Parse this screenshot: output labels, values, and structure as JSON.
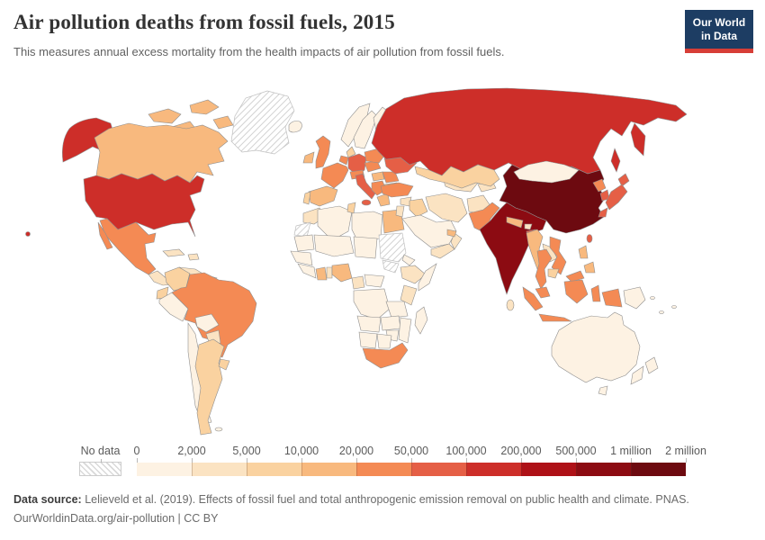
{
  "header": {
    "title": "Air pollution deaths from fossil fuels, 2015",
    "subtitle": "This measures annual excess mortality from the health impacts of air pollution from fossil fuels.",
    "logo": {
      "line1": "Our World",
      "line2": "in Data"
    }
  },
  "legend": {
    "no_data_label": "No data",
    "tick_labels": [
      "0",
      "2,000",
      "5,000",
      "10,000",
      "20,000",
      "50,000",
      "100,000",
      "200,000",
      "500,000",
      "1 million",
      "2 million"
    ]
  },
  "footer": {
    "source_label": "Data source:",
    "source_text": " Lelieveld et al. (2019). Effects of fossil fuel and total anthropogenic emission removal on public health and climate. PNAS.",
    "license_line": "OurWorldinData.org/air-pollution | CC BY"
  },
  "chart_data": {
    "type": "choropleth_map",
    "title": "Air pollution deaths from fossil fuels, 2015",
    "year": 2015,
    "unit": "annual excess deaths",
    "legend_position": "bottom",
    "no_data_regions": [
      "Greenland",
      "Western Sahara",
      "Sudan",
      "South Sudan"
    ],
    "bands": {
      "b1": {
        "range": "0 – 2,000",
        "color": "#fdf2e3"
      },
      "b2": {
        "range": "2,000 – 5,000",
        "color": "#fbe3c2"
      },
      "b3": {
        "range": "5,000 – 10,000",
        "color": "#fad2a0"
      },
      "b4": {
        "range": "10,000 – 20,000",
        "color": "#f8b97e"
      },
      "b5": {
        "range": "20,000 – 50,000",
        "color": "#f48a54"
      },
      "b6": {
        "range": "50,000 – 100,000",
        "color": "#e55f46"
      },
      "b7": {
        "range": "100,000 – 200,000",
        "color": "#cd2e29"
      },
      "b8": {
        "range": "200,000 – 500,000",
        "color": "#ae1117"
      },
      "b9": {
        "range": "500,000 – 1 million",
        "color": "#8c0b12"
      },
      "b10": {
        "range": "1 million – 2 million",
        "color": "#6d0a10"
      },
      "no_data": {
        "range": "No data",
        "color": "hatch"
      }
    },
    "countries": {
      "United States": "b7",
      "Canada": "b4",
      "Greenland": "no_data",
      "Iceland": "b1",
      "Mexico": "b5",
      "Cuba": "b2",
      "Haiti/Dominican Rep.": "b2",
      "Central America": "b2",
      "Colombia": "b3",
      "Venezuela": "b2",
      "Guyanas": "b1",
      "Ecuador": "b3",
      "Peru": "b1",
      "Brazil": "b5",
      "Bolivia": "b1",
      "Paraguay": "b2",
      "Uruguay": "b3",
      "Chile": "b1",
      "Argentina": "b3",
      "Falkland Is.": "b1",
      "United Kingdom": "b5",
      "Ireland": "b4",
      "Norway": "b1",
      "Sweden": "b1",
      "Finland": "b1",
      "Denmark": "b3",
      "Germany": "b6",
      "Benelux": "b5",
      "France": "b5",
      "Spain": "b4",
      "Portugal": "b3",
      "Italy": "b6",
      "Austria/Switzerland": "b5",
      "Czechia/Slovakia": "b5",
      "Poland": "b5",
      "Hungary": "b4",
      "Balkans": "b5",
      "Romania": "b5",
      "Bulgaria": "b4",
      "Greece": "b4",
      "Baltics": "b2",
      "Belarus": "b3",
      "Ukraine": "b6",
      "Russia": "b7",
      "Turkey": "b5",
      "Syria": "b2",
      "Iraq": "b3",
      "Jordan/Israel": "b2",
      "Saudi Arabia": "b1",
      "Yemen": "b2",
      "Oman": "b2",
      "United Arab Emirates": "b4",
      "Iran": "b2",
      "Afghanistan": "b2",
      "Turkmenistan/Uzbekistan": "b2",
      "Kyrgyzstan/Tajikistan": "b2",
      "Kazakhstan": "b3",
      "Pakistan": "b5",
      "India": "b9",
      "Nepal": "b4",
      "Bhutan": "b2",
      "Bangladesh": "b6",
      "Sri Lanka": "b2",
      "China": "b10",
      "Mongolia": "b1",
      "North Korea": "b5",
      "South Korea": "b6",
      "Japan": "b6",
      "Taiwan": "b6",
      "Myanmar": "b4",
      "Laos": "b2",
      "Vietnam": "b5",
      "Thailand": "b5",
      "Cambodia": "b3",
      "Malaysia": "b5",
      "Indonesia": "b5",
      "Philippines": "b4",
      "Papua New Guinea": "b1",
      "Australia": "b1",
      "New Zealand": "b1",
      "Morocco": "b2",
      "Western Sahara": "no_data",
      "Algeria": "b1",
      "Tunisia": "b3",
      "Libya": "b1",
      "Egypt": "b4",
      "Mauritania": "b1",
      "Mali/Niger": "b1",
      "Chad": "b1",
      "Sudan": "no_data",
      "South Sudan": "no_data",
      "Eritrea": "b1",
      "Ethiopia": "b2",
      "Somalia": "b1",
      "Senegal/Guinea": "b1",
      "Côte d'Ivoire": "b1",
      "Ghana": "b4",
      "Benin/Togo": "b2",
      "Nigeria": "b4",
      "Cameroon": "b2",
      "Central African Rep.": "b1",
      "DR Congo": "b1",
      "Kenya": "b2",
      "Tanzania": "b1",
      "Angola": "b1",
      "Zambia": "b1",
      "Mozambique": "b1",
      "Zimbabwe": "b1",
      "Namibia": "b1",
      "Botswana": "b1",
      "South Africa": "b5",
      "Madagascar": "b1",
      "Pacific Islands": "b1"
    }
  }
}
